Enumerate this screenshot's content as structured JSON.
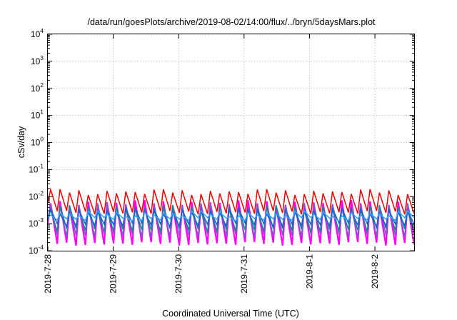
{
  "chart_data": {
    "type": "line",
    "title": "/data/run/goesPlots/archive/2019-08-02/14:00/flux/../bryn/5daysMars.plot",
    "xlabel": "Coordinated Universal Time (UTC)",
    "ylabel": "cSv/day",
    "yscale": "log",
    "ylim": [
      0.0001,
      10000
    ],
    "xlim": [
      0,
      5.6
    ],
    "grid": true,
    "y_ticks": [
      {
        "base": "10",
        "exp": "-4",
        "value": 0.0001
      },
      {
        "base": "10",
        "exp": "-3",
        "value": 0.001
      },
      {
        "base": "10",
        "exp": "-2",
        "value": 0.01
      },
      {
        "base": "10",
        "exp": "-1",
        "value": 0.1
      },
      {
        "base": "10",
        "exp": "0",
        "value": 1
      },
      {
        "base": "10",
        "exp": "1",
        "value": 10
      },
      {
        "base": "10",
        "exp": "2",
        "value": 100
      },
      {
        "base": "10",
        "exp": "3",
        "value": 1000
      },
      {
        "base": "10",
        "exp": "4",
        "value": 10000
      }
    ],
    "x_ticks": [
      {
        "label": "2019-7-28",
        "value": 0
      },
      {
        "label": "2019-7-29",
        "value": 1
      },
      {
        "label": "2019-7-30",
        "value": 2
      },
      {
        "label": "2019-7-31",
        "value": 3
      },
      {
        "label": "2019-8-1",
        "value": 4
      },
      {
        "label": "2019-8-2",
        "value": 5
      }
    ],
    "series_style": {
      "teeth_per_day": 7,
      "colors": [
        "#ff00ff",
        "#7a5cc8",
        "#0a8a8a",
        "#1a5ed8",
        "#3aa0ff",
        "#ee0000"
      ],
      "peak_log": [
        -2.25,
        -2.35,
        -2.45,
        -2.55,
        -2.65,
        -1.85
      ],
      "trough_log": [
        -3.75,
        -3.45,
        -3.25,
        -3.05,
        -2.85,
        -2.6
      ]
    }
  }
}
